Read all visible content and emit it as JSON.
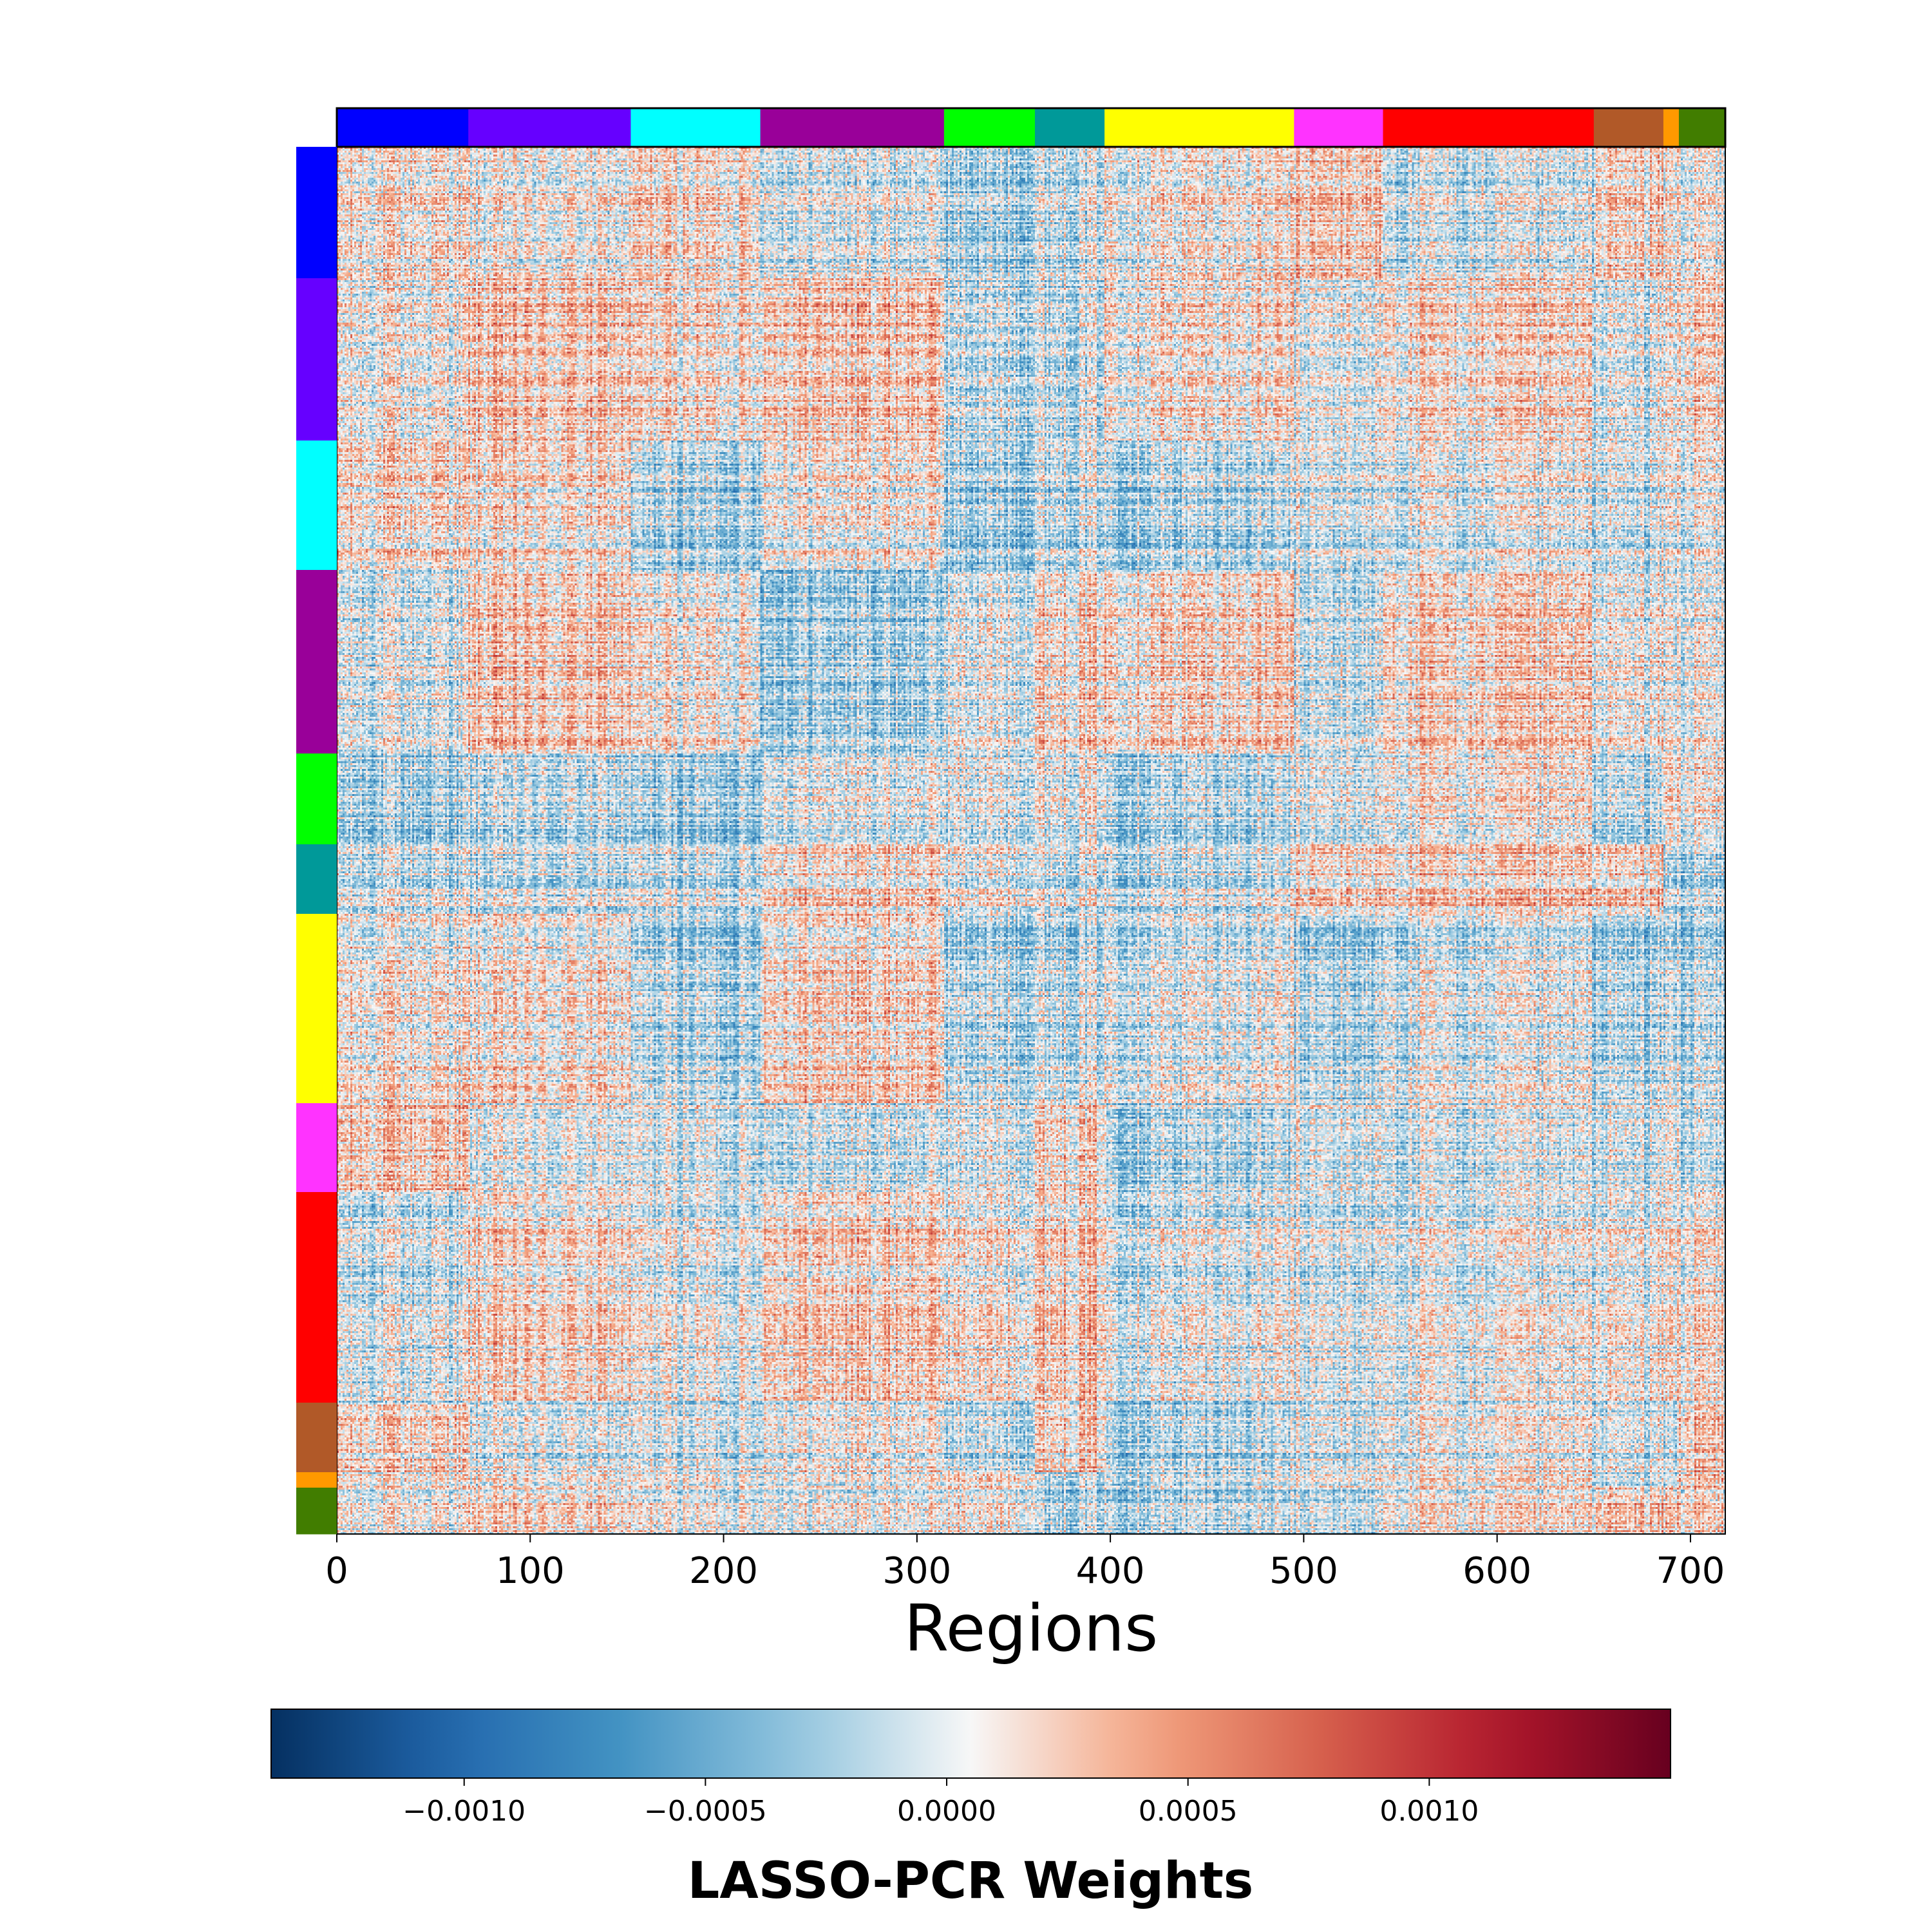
{
  "chart_data": {
    "type": "heatmap",
    "title": "",
    "xlabel": "Regions",
    "ylabel": "",
    "n_regions": 718,
    "x_ticks": [
      0,
      100,
      200,
      300,
      400,
      500,
      600,
      700
    ],
    "x_tick_labels": [
      "0",
      "100",
      "200",
      "300",
      "400",
      "500",
      "600",
      "700"
    ],
    "xlim": [
      0,
      718
    ],
    "network_blocks": [
      {
        "start": 0,
        "end": 68,
        "color": "#0000ff"
      },
      {
        "start": 68,
        "end": 152,
        "color": "#6600ff"
      },
      {
        "start": 152,
        "end": 219,
        "color": "#00ffff"
      },
      {
        "start": 219,
        "end": 314,
        "color": "#990099"
      },
      {
        "start": 314,
        "end": 361,
        "color": "#00ff00"
      },
      {
        "start": 361,
        "end": 397,
        "color": "#009999"
      },
      {
        "start": 397,
        "end": 495,
        "color": "#ffff00"
      },
      {
        "start": 495,
        "end": 541,
        "color": "#ff33ff"
      },
      {
        "start": 541,
        "end": 650,
        "color": "#ff0000"
      },
      {
        "start": 650,
        "end": 686,
        "color": "#b15928"
      },
      {
        "start": 686,
        "end": 694,
        "color": "#ff9900"
      },
      {
        "start": 694,
        "end": 718,
        "color": "#417d00"
      }
    ],
    "colorbar": {
      "label": "LASSO-PCR Weights",
      "colormap": "RdBu_r",
      "vmin": -0.0014,
      "vmax": 0.0015,
      "ticks": [
        -0.001,
        -0.0005,
        0.0,
        0.0005,
        0.001
      ],
      "tick_labels": [
        "−0.0010",
        "−0.0005",
        "0.0000",
        "0.0005",
        "0.0010"
      ],
      "orientation": "horizontal"
    }
  }
}
